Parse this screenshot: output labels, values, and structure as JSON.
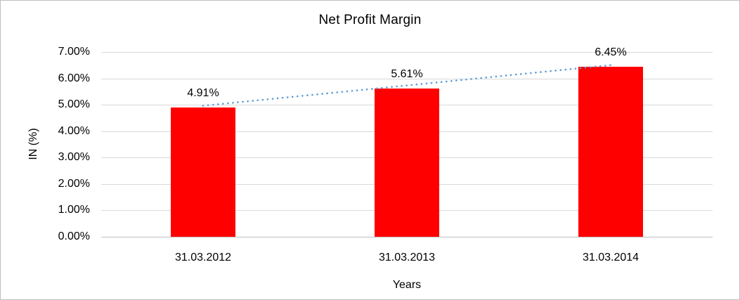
{
  "chart_data": {
    "type": "bar",
    "title": "Net Profit Margin",
    "categories": [
      "31.03.2012",
      "31.03.2013",
      "31.03.2014"
    ],
    "series": [
      {
        "name": "Net Profit Margin",
        "values": [
          4.91,
          5.61,
          6.45
        ],
        "data_labels": [
          "4.91%",
          "5.61%",
          "6.45%"
        ],
        "color": "#ff0000"
      }
    ],
    "xlabel": "Years",
    "ylabel": "IN (%)",
    "ylim": [
      0,
      7
    ],
    "ytick_step": 1,
    "ytick_labels": [
      "0.00%",
      "1.00%",
      "2.00%",
      "3.00%",
      "4.00%",
      "5.00%",
      "6.00%",
      "7.00%"
    ],
    "grid": true,
    "legend": false,
    "trendline": {
      "type": "linear",
      "style": "round-dot",
      "color": "#5b9bd5",
      "span": "first-to-last"
    }
  },
  "colors": {
    "bar": "#ff0000",
    "trendline": "#5b9bd5",
    "gridline": "#d9d9d9",
    "axis_line": "#bfbfbf",
    "text": "#000000",
    "background": "#ffffff",
    "border": "#bfbfbf"
  }
}
